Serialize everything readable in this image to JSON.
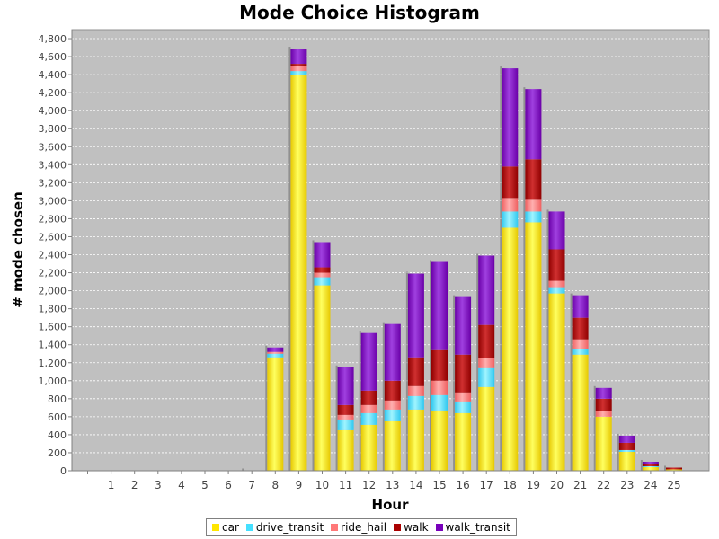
{
  "chart_data": {
    "type": "bar",
    "stacked": true,
    "title": "Mode Choice Histogram",
    "xlabel": "Hour",
    "ylabel": "# mode chosen",
    "ylim": [
      0,
      4900
    ],
    "yticks": [
      0,
      200,
      400,
      600,
      800,
      1000,
      1200,
      1400,
      1600,
      1800,
      2000,
      2200,
      2400,
      2600,
      2800,
      3000,
      3200,
      3400,
      3600,
      3800,
      4000,
      4200,
      4400,
      4600,
      4800
    ],
    "ytick_labels": [
      "0",
      "200",
      "400",
      "600",
      "800",
      "1,000",
      "1,200",
      "1,400",
      "1,600",
      "1,800",
      "2,000",
      "2,200",
      "2,400",
      "2,600",
      "2,800",
      "3,000",
      "3,200",
      "3,400",
      "3,600",
      "3,800",
      "4,000",
      "4,200",
      "4,400",
      "4,600",
      "4,800"
    ],
    "categories": [
      "",
      "1",
      "2",
      "3",
      "4",
      "5",
      "6",
      "7",
      "8",
      "9",
      "10",
      "11",
      "12",
      "13",
      "14",
      "15",
      "16",
      "17",
      "18",
      "19",
      "20",
      "21",
      "22",
      "23",
      "24",
      "25"
    ],
    "grid": true,
    "legend_position": "bottom",
    "series": [
      {
        "name": "car",
        "color": "#FFE600",
        "values": [
          0,
          0,
          0,
          0,
          0,
          0,
          0,
          5,
          1260,
          4400,
          2060,
          450,
          510,
          550,
          680,
          670,
          640,
          930,
          2700,
          2760,
          1970,
          1290,
          600,
          210,
          40,
          15
        ]
      },
      {
        "name": "drive_transit",
        "color": "#45E0FF",
        "values": [
          0,
          0,
          0,
          0,
          0,
          0,
          0,
          0,
          40,
          40,
          90,
          120,
          130,
          130,
          150,
          170,
          130,
          210,
          180,
          120,
          60,
          60,
          0,
          20,
          10,
          0
        ]
      },
      {
        "name": "ride_hail",
        "color": "#FF7878",
        "values": [
          0,
          0,
          0,
          0,
          0,
          0,
          0,
          0,
          20,
          60,
          50,
          50,
          90,
          100,
          110,
          160,
          100,
          110,
          150,
          130,
          80,
          110,
          60,
          0,
          0,
          0
        ]
      },
      {
        "name": "walk",
        "color": "#AA0000",
        "values": [
          0,
          0,
          0,
          0,
          0,
          0,
          0,
          0,
          0,
          20,
          60,
          110,
          160,
          220,
          320,
          340,
          420,
          370,
          350,
          450,
          350,
          240,
          140,
          80,
          20,
          20
        ]
      },
      {
        "name": "walk_transit",
        "color": "#7800BB",
        "values": [
          0,
          0,
          0,
          0,
          0,
          0,
          0,
          0,
          50,
          170,
          280,
          420,
          640,
          630,
          930,
          980,
          640,
          770,
          1090,
          780,
          420,
          250,
          120,
          80,
          30,
          0
        ]
      }
    ]
  }
}
